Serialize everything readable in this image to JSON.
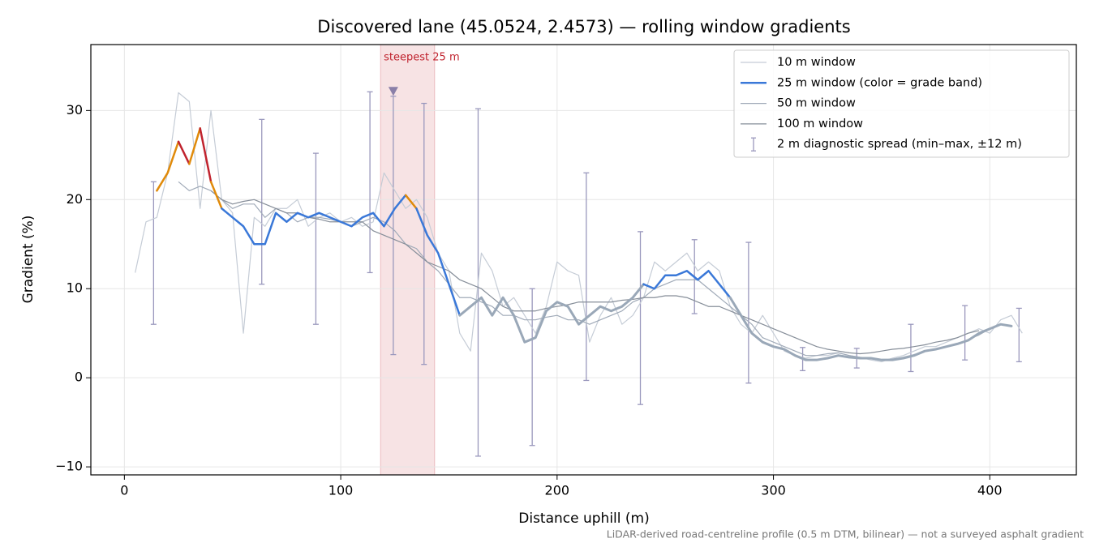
{
  "chart_data": {
    "type": "line",
    "title": "Discovered lane (45.0524, 2.4573) — rolling window gradients",
    "xlabel": "Distance uphill (m)",
    "ylabel": "Gradient (%)",
    "footnote": "LiDAR-derived road-centreline profile (0.5 m DTM, bilinear) — not a surveyed asphalt gradient",
    "xlim": [
      -15.5,
      440
    ],
    "ylim": [
      -10.9,
      37.4
    ],
    "xticks": [
      0,
      100,
      200,
      300,
      400
    ],
    "yticks": [
      {
        "value": -10,
        "label": "−10"
      },
      0,
      10,
      20,
      30
    ],
    "grid": true,
    "legend": "upper right",
    "x": [
      5,
      10,
      15,
      20,
      25,
      30,
      35,
      40,
      45,
      50,
      55,
      60,
      65,
      70,
      75,
      80,
      85,
      90,
      95,
      100,
      105,
      110,
      115,
      120,
      125,
      130,
      135,
      140,
      145,
      150,
      155,
      160,
      165,
      170,
      175,
      180,
      185,
      190,
      195,
      200,
      205,
      210,
      215,
      220,
      225,
      230,
      235,
      240,
      245,
      250,
      255,
      260,
      265,
      270,
      275,
      280,
      285,
      290,
      295,
      300,
      305,
      310,
      315,
      320,
      325,
      330,
      335,
      340,
      345,
      350,
      355,
      360,
      365,
      370,
      375,
      380,
      385,
      390,
      395,
      400,
      405,
      410,
      415
    ],
    "series": [
      {
        "name": "10 m window",
        "color": "#c5ccd6",
        "width": 1.2,
        "values": [
          11.8,
          17.5,
          18,
          23,
          32,
          31,
          19,
          30,
          20,
          18.5,
          5,
          18,
          17,
          19,
          19,
          20,
          17,
          18,
          18.5,
          17.5,
          18,
          17,
          17.5,
          23,
          21,
          19,
          20,
          18,
          14,
          12,
          5,
          3,
          14,
          12,
          8,
          9,
          7,
          5,
          8,
          13,
          12,
          11.5,
          4,
          7,
          9,
          6,
          7,
          9,
          13,
          12,
          13,
          14,
          12,
          13,
          12,
          8,
          6,
          5,
          7,
          5,
          3,
          2.5,
          2.2,
          2.5,
          2.5,
          2.8,
          2.5,
          2.3,
          2,
          1.8,
          2.2,
          2.5,
          3,
          3.5,
          3.5,
          4,
          4.5,
          5,
          5.5,
          5,
          6.5,
          7,
          5
        ]
      },
      {
        "name": "25 m window (color = grade band)",
        "color": "#3a78d8",
        "width": 2.5,
        "bands": [
          {
            "max": 10,
            "color": "#9aa8b8"
          },
          {
            "max": 20,
            "color": "#3a78d8"
          },
          {
            "max": 25,
            "color": "#e08a0a"
          },
          {
            "max": 100,
            "color": "#c0232e"
          }
        ],
        "values": [
          null,
          null,
          21,
          23,
          26.5,
          24,
          28,
          22,
          19,
          18,
          17,
          15,
          15,
          18.5,
          17.5,
          18.5,
          18,
          18.5,
          18,
          17.5,
          17,
          18,
          18.5,
          17,
          19,
          20.5,
          19,
          16,
          14,
          10.5,
          7,
          8,
          9,
          7,
          9,
          7,
          4,
          4.5,
          7.5,
          8.5,
          8,
          6,
          7,
          8,
          7.5,
          8,
          9,
          10.5,
          10,
          11.5,
          11.5,
          12,
          11,
          12,
          10.5,
          9,
          7,
          5,
          4,
          3.5,
          3.2,
          2.5,
          2,
          2,
          2.2,
          2.5,
          2.3,
          2.2,
          2.2,
          2,
          2,
          2.2,
          2.5,
          3,
          3.2,
          3.5,
          3.8,
          4.2,
          5,
          5.5,
          6,
          5.8,
          null
        ]
      },
      {
        "name": "50 m window",
        "color": "#a0aab8",
        "width": 1.2,
        "values": [
          null,
          null,
          null,
          null,
          22,
          21,
          21.5,
          21,
          20,
          19,
          19.5,
          19.5,
          18,
          19,
          18.5,
          17.5,
          18,
          18,
          17.8,
          17.5,
          17,
          17.5,
          18,
          17.5,
          16.5,
          15,
          14.5,
          13,
          12,
          10.5,
          9,
          9,
          8.5,
          8,
          7,
          7,
          6.5,
          6.5,
          6.8,
          7,
          6.5,
          6.5,
          6,
          6.5,
          7,
          7.5,
          8.5,
          9,
          10,
          10.5,
          11,
          11,
          11,
          10,
          9,
          8,
          7,
          6,
          4.5,
          4,
          3.5,
          3,
          2.5,
          2.5,
          2.7,
          2.8,
          2.5,
          2.3,
          2.2,
          2,
          2.1,
          2.3,
          2.6,
          3,
          3.2,
          3.5,
          3.8,
          4.3,
          4.8,
          5.5,
          null,
          null,
          null
        ]
      },
      {
        "name": "100 m window",
        "color": "#868e99",
        "width": 1.2,
        "values": [
          null,
          null,
          null,
          null,
          null,
          null,
          null,
          21,
          20,
          19.5,
          19.8,
          20,
          19.5,
          19,
          18.5,
          18.5,
          18,
          17.8,
          17.5,
          17.5,
          17.5,
          17.5,
          16.5,
          16,
          15.5,
          15,
          14,
          13,
          12.5,
          12,
          11,
          10.5,
          10,
          9,
          8,
          7.5,
          7.5,
          7.5,
          7.8,
          8,
          8.2,
          8.5,
          8.5,
          8.5,
          8.5,
          8.7,
          8.8,
          9,
          9,
          9.2,
          9.2,
          9,
          8.5,
          8,
          8,
          7.5,
          7,
          6.5,
          6,
          5.5,
          5,
          4.5,
          4,
          3.5,
          3.2,
          3,
          2.8,
          2.7,
          2.8,
          3,
          3.2,
          3.3,
          3.5,
          3.7,
          4,
          4.2,
          4.5,
          5,
          5.3,
          null,
          null,
          null,
          null
        ]
      }
    ],
    "errorbars": {
      "name": "2 m diagnostic spread (min–max, ±12 m)",
      "color": "#9a98bd",
      "x": [
        13.5,
        63.5,
        88.5,
        113.5,
        124.3,
        138.5,
        163.5,
        188.5,
        213.5,
        238.5,
        263.5,
        288.5,
        313.5,
        338.5,
        363.5,
        388.5,
        413.5
      ],
      "low": [
        6,
        10.5,
        6,
        11.8,
        2.6,
        1.5,
        -8.8,
        -7.6,
        -0.3,
        -3,
        7.2,
        -0.6,
        0.8,
        1.1,
        0.7,
        2,
        1.8
      ],
      "high": [
        22,
        29,
        25.2,
        32.1,
        31.6,
        30.8,
        30.2,
        10,
        23,
        16.4,
        15.5,
        15.2,
        3.4,
        3.3,
        6,
        8.1,
        7.8
      ]
    },
    "highlight": {
      "label": "steepest 25 m",
      "color": "#c0232e",
      "xrange": [
        118.4,
        143.4
      ]
    },
    "marker": {
      "x": 124.3,
      "y": 32.1,
      "color": "#8a7fa8"
    }
  }
}
